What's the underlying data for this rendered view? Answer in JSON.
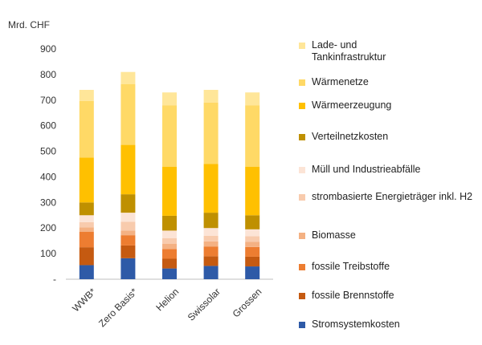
{
  "chart_data": {
    "type": "bar",
    "stacked": true,
    "ylabel": "Mrd. CHF",
    "ylim": [
      0,
      900
    ],
    "yticks": [
      0,
      100,
      200,
      300,
      400,
      500,
      600,
      700,
      800,
      900
    ],
    "ytick_labels": [
      "-",
      "100",
      "200",
      "300",
      "400",
      "500",
      "600",
      "700",
      "800",
      "900"
    ],
    "categories": [
      "WWB*",
      "Zero Basis*",
      "Helion",
      "Swissolar",
      "Grossen"
    ],
    "grid": false,
    "legend_position": "right",
    "series": [
      {
        "name": "Stromsystemkosten",
        "color": "#2e5aa7",
        "values": [
          55,
          82,
          42,
          52,
          50
        ]
      },
      {
        "name": "fossile Brennstoffe",
        "color": "#c55a11",
        "values": [
          70,
          50,
          38,
          38,
          38
        ]
      },
      {
        "name": "fossile Treibstoffe",
        "color": "#ed7d31",
        "values": [
          60,
          40,
          38,
          38,
          38
        ]
      },
      {
        "name": "Biomasse",
        "color": "#f4b183",
        "values": [
          18,
          18,
          20,
          20,
          20
        ]
      },
      {
        "name": "strombasierte Energieträger inkl. H2",
        "color": "#f8cbad",
        "values": [
          20,
          35,
          22,
          22,
          22
        ]
      },
      {
        "name": "Müll und Industrieabfälle",
        "color": "#fce4d6",
        "values": [
          27,
          35,
          30,
          30,
          27
        ]
      },
      {
        "name": "Verteilnetzkosten",
        "color": "#bf9000",
        "values": [
          50,
          72,
          58,
          60,
          55
        ]
      },
      {
        "name": "Wärmeerzeugung",
        "color": "#ffc000",
        "values": [
          175,
          193,
          192,
          190,
          190
        ]
      },
      {
        "name": "Wärmenetze",
        "color": "#ffd966",
        "values": [
          222,
          237,
          240,
          240,
          240
        ]
      },
      {
        "name": "Lade- und\nTankinfrastruktur",
        "color": "#ffe699",
        "values": [
          43,
          48,
          50,
          50,
          50
        ]
      }
    ]
  }
}
